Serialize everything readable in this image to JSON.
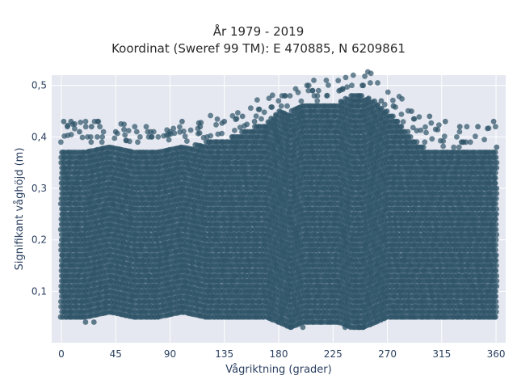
{
  "chart_data": {
    "type": "scatter",
    "title": "År 1979 - 2019",
    "subtitle": "Koordinat (Sweref 99 TM): E 470885, N 6209861",
    "xlabel": "Vågriktning (grader)",
    "ylabel": "Signifikant våghöjd (m)",
    "xlim": [
      -8,
      368
    ],
    "ylim": [
      0.0,
      0.52
    ],
    "xticks": [
      0,
      45,
      90,
      135,
      180,
      225,
      270,
      315,
      360
    ],
    "xtick_labels": [
      "0",
      "45",
      "90",
      "135",
      "180",
      "225",
      "270",
      "315",
      "360"
    ],
    "yticks": [
      0.1,
      0.2,
      0.3,
      0.4,
      0.5
    ],
    "ytick_labels": [
      "0,1",
      "0,2",
      "0,3",
      "0,4",
      "0,5"
    ],
    "grid": true,
    "legend": "none",
    "marker_color": "#2f5468",
    "plot_background": "#e5e8f0",
    "series": [
      {
        "envelope_x": [
          0,
          20,
          40,
          60,
          80,
          100,
          120,
          140,
          160,
          170,
          180,
          190,
          200,
          220,
          230,
          240,
          250,
          260,
          270,
          280,
          290,
          300,
          320,
          340,
          360
        ],
        "envelope_ymin": [
          0.05,
          0.05,
          0.06,
          0.05,
          0.05,
          0.06,
          0.05,
          0.05,
          0.05,
          0.05,
          0.04,
          0.03,
          0.04,
          0.04,
          0.04,
          0.03,
          0.03,
          0.04,
          0.05,
          0.05,
          0.05,
          0.05,
          0.05,
          0.05,
          0.05
        ],
        "envelope_ymax_dense": [
          0.37,
          0.38,
          0.38,
          0.37,
          0.37,
          0.38,
          0.39,
          0.4,
          0.42,
          0.43,
          0.45,
          0.45,
          0.46,
          0.46,
          0.47,
          0.48,
          0.48,
          0.47,
          0.45,
          0.43,
          0.4,
          0.38,
          0.37,
          0.37,
          0.38
        ],
        "outliers": [
          {
            "x": 2,
            "y": 0.43
          },
          {
            "x": 5,
            "y": 0.42
          },
          {
            "x": 8,
            "y": 0.43
          },
          {
            "x": 15,
            "y": 0.41
          },
          {
            "x": 25,
            "y": 0.42
          },
          {
            "x": 30,
            "y": 0.43
          },
          {
            "x": 45,
            "y": 0.41
          },
          {
            "x": 75,
            "y": 0.4
          },
          {
            "x": 90,
            "y": 0.41
          },
          {
            "x": 100,
            "y": 0.43
          },
          {
            "x": 115,
            "y": 0.42
          },
          {
            "x": 135,
            "y": 0.43
          },
          {
            "x": 150,
            "y": 0.44
          },
          {
            "x": 160,
            "y": 0.43
          },
          {
            "x": 250,
            "y": 0.5
          },
          {
            "x": 265,
            "y": 0.47
          },
          {
            "x": 275,
            "y": 0.46
          },
          {
            "x": 290,
            "y": 0.45
          },
          {
            "x": 305,
            "y": 0.44
          },
          {
            "x": 318,
            "y": 0.43
          },
          {
            "x": 330,
            "y": 0.42
          },
          {
            "x": 345,
            "y": 0.42
          },
          {
            "x": 358,
            "y": 0.43
          },
          {
            "x": 20,
            "y": 0.04
          },
          {
            "x": 27,
            "y": 0.04
          },
          {
            "x": 190,
            "y": 0.03
          },
          {
            "x": 200,
            "y": 0.03
          },
          {
            "x": 235,
            "y": 0.03
          },
          {
            "x": 247,
            "y": 0.03
          },
          {
            "x": 250,
            "y": 0.03
          }
        ]
      }
    ]
  }
}
